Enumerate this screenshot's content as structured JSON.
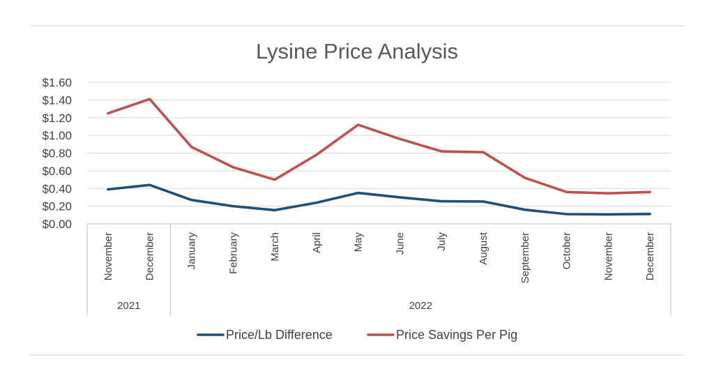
{
  "chart_data": {
    "type": "line",
    "title": "Lysine Price Analysis",
    "xlabel": "",
    "ylabel": "",
    "ylim": [
      0,
      1.6
    ],
    "y_ticks": [
      "$0.00",
      "$0.20",
      "$0.40",
      "$0.60",
      "$0.80",
      "$1.00",
      "$1.20",
      "$1.40",
      "$1.60"
    ],
    "y_tick_values": [
      0,
      0.2,
      0.4,
      0.6,
      0.8,
      1.0,
      1.2,
      1.4,
      1.6
    ],
    "grid": true,
    "legend_position": "bottom",
    "categories": [
      "November",
      "December",
      "January",
      "February",
      "March",
      "April",
      "May",
      "June",
      "July",
      "August",
      "September",
      "October",
      "November",
      "December"
    ],
    "groups": [
      {
        "label": "2021",
        "count": 2
      },
      {
        "label": "2022",
        "count": 12
      }
    ],
    "series": [
      {
        "name": "Price/Lb Difference",
        "color": "#1f4e79",
        "values": [
          0.39,
          0.44,
          0.27,
          0.2,
          0.155,
          0.24,
          0.35,
          0.3,
          0.255,
          0.253,
          0.16,
          0.11,
          0.107,
          0.112
        ]
      },
      {
        "name": "Price Savings Per Pig",
        "color": "#c0504d",
        "values": [
          1.25,
          1.41,
          0.87,
          0.64,
          0.5,
          0.78,
          1.12,
          0.96,
          0.82,
          0.81,
          0.52,
          0.36,
          0.345,
          0.36
        ]
      }
    ]
  }
}
